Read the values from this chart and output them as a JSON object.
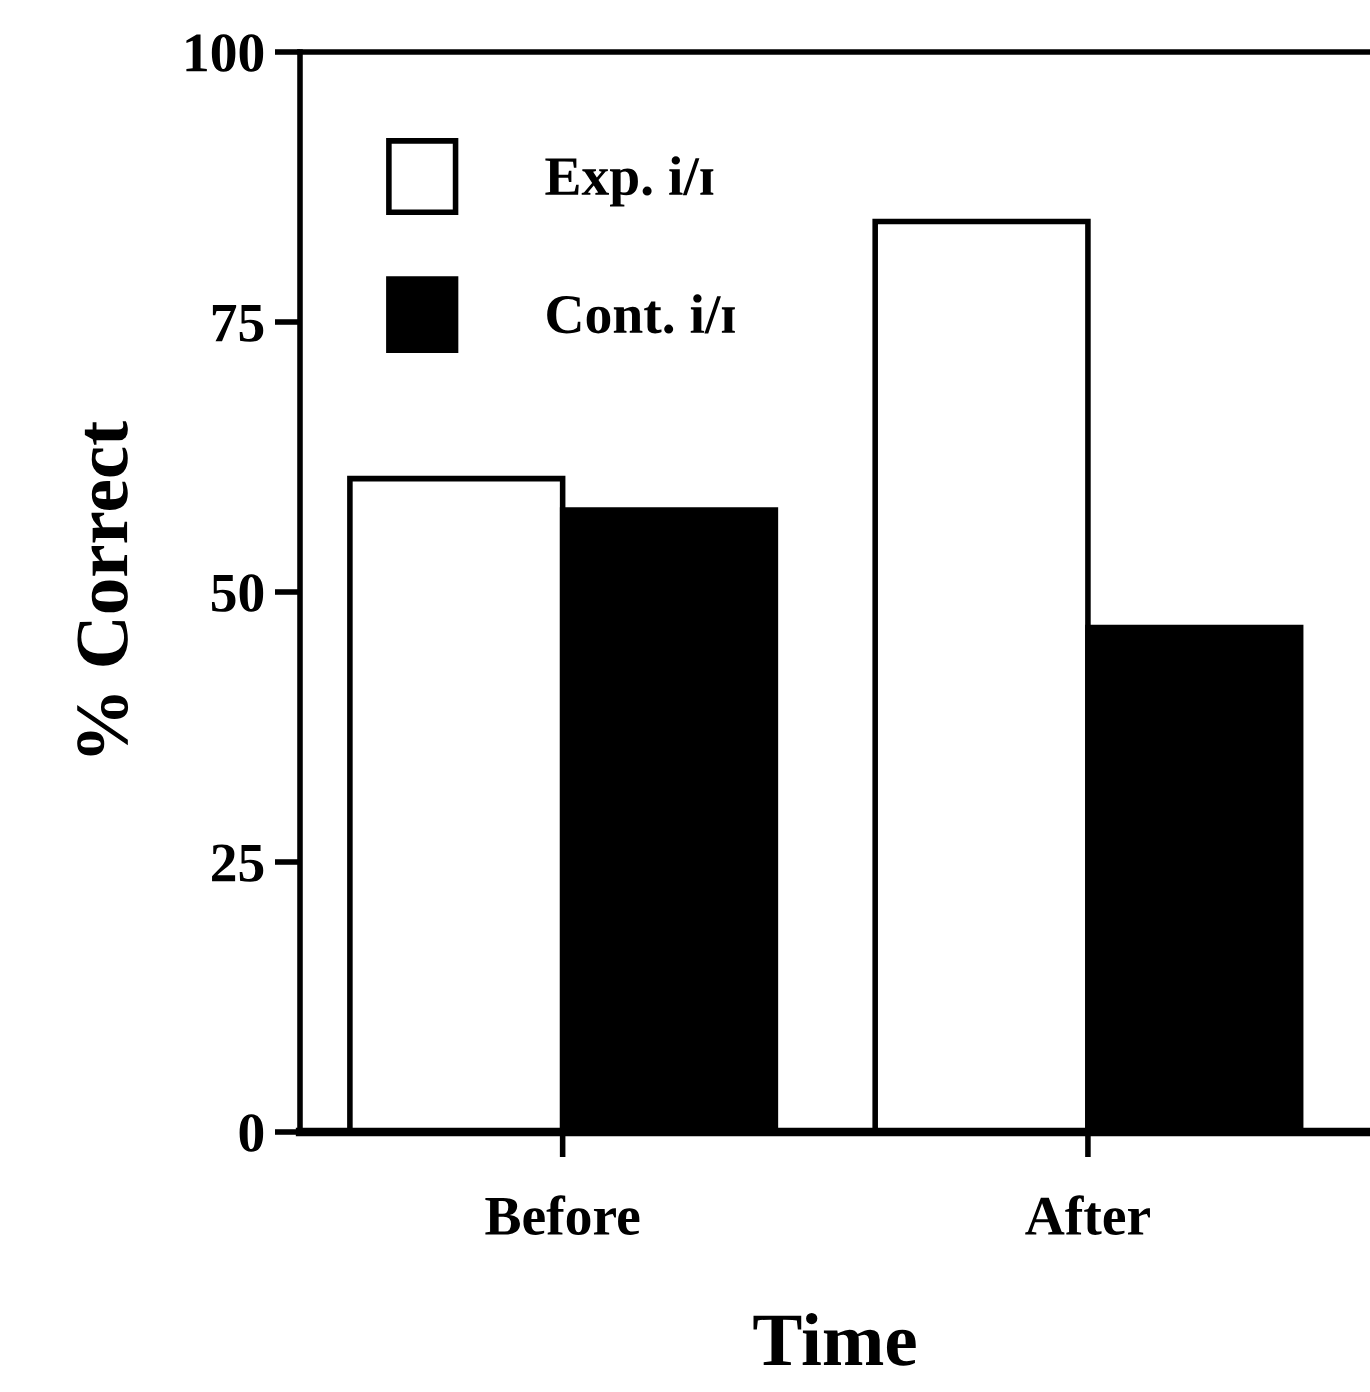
{
  "chart_data": {
    "type": "bar",
    "xlabel": "Time",
    "ylabel": "% Correct",
    "categories": [
      "Before",
      "After"
    ],
    "series": [
      {
        "name": "Exp. i/ɪ",
        "color": "#ffffff",
        "values": [
          60.5,
          84.3
        ]
      },
      {
        "name": "Cont. i/ɪ",
        "color": "#000000",
        "values": [
          57.6,
          46.7
        ]
      }
    ],
    "ylim": [
      0,
      100
    ],
    "yticks": [
      0,
      25,
      50,
      75,
      100
    ],
    "grid": false,
    "legend": "top left"
  }
}
